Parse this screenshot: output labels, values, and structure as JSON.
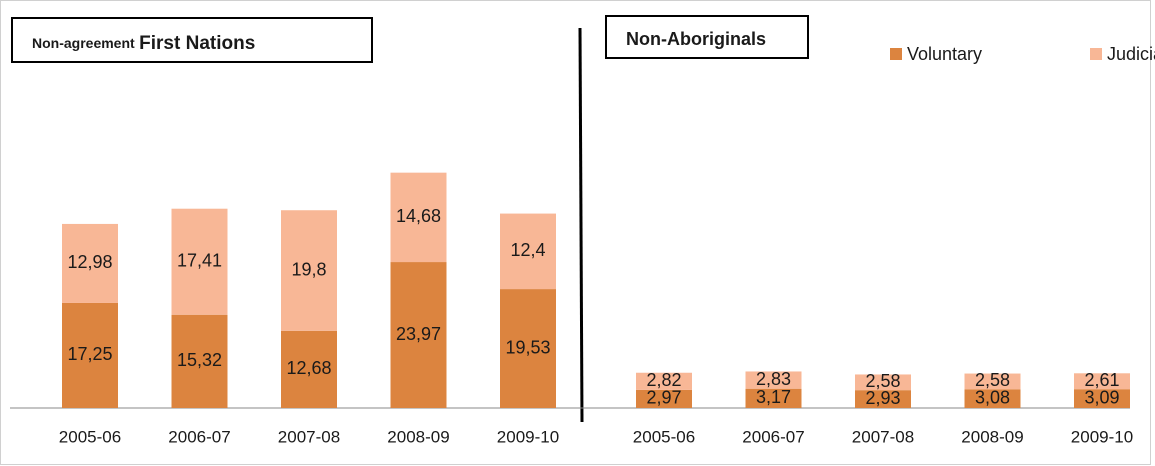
{
  "chart_data": {
    "type": "stacked_bar",
    "panel_titles": [
      [
        "Non-agreement",
        "First Nations"
      ],
      [
        "Non-Aboriginals"
      ]
    ],
    "categories": [
      "2005-06",
      "2006-07",
      "2007-08",
      "2008-09",
      "2009-10",
      "2005-06",
      "2006-07",
      "2007-08",
      "2008-09",
      "2009-10"
    ],
    "series": [
      {
        "name": "Voluntary",
        "color": "#dc843f",
        "values": [
          17.25,
          15.32,
          12.68,
          23.97,
          19.53,
          2.97,
          3.17,
          2.93,
          3.08,
          3.09
        ],
        "value_labels": [
          "17,25",
          "15,32",
          "12,68",
          "23,97",
          "19,53",
          "2,97",
          "3,17",
          "2,93",
          "3,08",
          "3,09"
        ]
      },
      {
        "name": "Judicial",
        "color": "#f8b796",
        "values": [
          12.98,
          17.41,
          19.8,
          14.68,
          12.4,
          2.82,
          2.83,
          2.58,
          2.58,
          2.61
        ],
        "value_labels": [
          "12,98",
          "17,41",
          "19,8",
          "14,68",
          "12,4",
          "2,82",
          "2,83",
          "2,58",
          "2,58",
          "2,61"
        ]
      }
    ],
    "ylim": [
      0,
      45
    ]
  }
}
